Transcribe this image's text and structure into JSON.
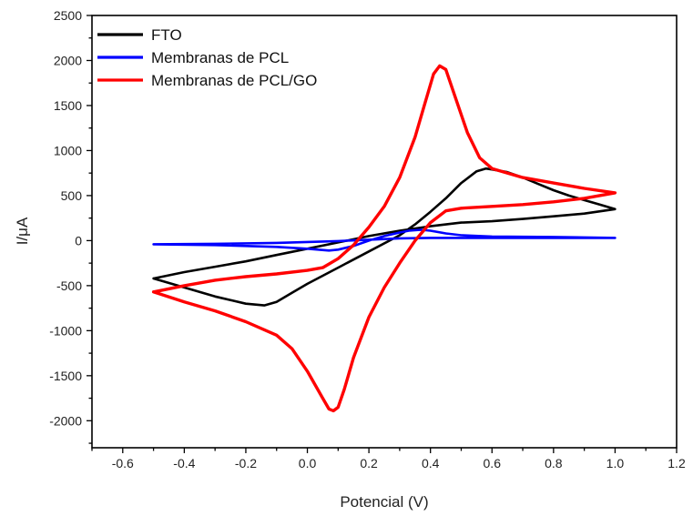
{
  "chart_data": {
    "type": "line",
    "title": "",
    "xlabel": "Potencial (V)",
    "ylabel": "I/μA",
    "xlim": [
      -0.7,
      1.2
    ],
    "ylim": [
      -2300,
      2500
    ],
    "xticks": [
      -0.6,
      -0.4,
      -0.2,
      0.0,
      0.2,
      0.4,
      0.6,
      0.8,
      1.0,
      1.2
    ],
    "xtick_labels": [
      "-0.6",
      "-0.4",
      "-0.2",
      "0.0",
      "0.2",
      "0.4",
      "0.6",
      "0.8",
      "1.0",
      "1.2"
    ],
    "yticks": [
      -2000,
      -1500,
      -1000,
      -500,
      0,
      500,
      1000,
      1500,
      2000,
      2500
    ],
    "ytick_labels": [
      "-2000",
      "-1500",
      "-1000",
      "-500",
      "0",
      "500",
      "1000",
      "1500",
      "2000",
      "2500"
    ],
    "grid": false,
    "legend": "top-left",
    "series": [
      {
        "name": "FTO",
        "color": "#000000",
        "points": [
          [
            -0.5,
            -420
          ],
          [
            -0.4,
            -350
          ],
          [
            -0.3,
            -290
          ],
          [
            -0.2,
            -230
          ],
          [
            -0.1,
            -160
          ],
          [
            0.0,
            -90
          ],
          [
            0.1,
            -20
          ],
          [
            0.2,
            50
          ],
          [
            0.3,
            110
          ],
          [
            0.4,
            160
          ],
          [
            0.45,
            180
          ],
          [
            0.5,
            200
          ],
          [
            0.6,
            215
          ],
          [
            0.7,
            240
          ],
          [
            0.8,
            270
          ],
          [
            0.9,
            300
          ],
          [
            1.0,
            350
          ],
          [
            0.95,
            400
          ],
          [
            0.9,
            450
          ],
          [
            0.85,
            500
          ],
          [
            0.8,
            560
          ],
          [
            0.75,
            630
          ],
          [
            0.7,
            700
          ],
          [
            0.65,
            760
          ],
          [
            0.6,
            790
          ],
          [
            0.58,
            800
          ],
          [
            0.55,
            770
          ],
          [
            0.5,
            640
          ],
          [
            0.45,
            470
          ],
          [
            0.4,
            320
          ],
          [
            0.35,
            180
          ],
          [
            0.3,
            60
          ],
          [
            0.2,
            -120
          ],
          [
            0.1,
            -300
          ],
          [
            0.0,
            -480
          ],
          [
            -0.05,
            -580
          ],
          [
            -0.1,
            -680
          ],
          [
            -0.14,
            -720
          ],
          [
            -0.2,
            -700
          ],
          [
            -0.3,
            -620
          ],
          [
            -0.4,
            -520
          ],
          [
            -0.5,
            -420
          ]
        ]
      },
      {
        "name": "Membranas de PCL",
        "color": "#0000ff",
        "points": [
          [
            -0.5,
            -40
          ],
          [
            -0.3,
            -35
          ],
          [
            -0.1,
            -25
          ],
          [
            0.1,
            -5
          ],
          [
            0.2,
            10
          ],
          [
            0.3,
            25
          ],
          [
            0.4,
            30
          ],
          [
            0.6,
            30
          ],
          [
            0.8,
            30
          ],
          [
            1.0,
            30
          ],
          [
            0.8,
            40
          ],
          [
            0.6,
            45
          ],
          [
            0.5,
            60
          ],
          [
            0.45,
            80
          ],
          [
            0.4,
            110
          ],
          [
            0.37,
            120
          ],
          [
            0.33,
            110
          ],
          [
            0.3,
            90
          ],
          [
            0.25,
            50
          ],
          [
            0.2,
            0
          ],
          [
            0.15,
            -60
          ],
          [
            0.1,
            -100
          ],
          [
            0.07,
            -110
          ],
          [
            0.0,
            -90
          ],
          [
            -0.1,
            -70
          ],
          [
            -0.3,
            -50
          ],
          [
            -0.5,
            -40
          ]
        ]
      },
      {
        "name": "Membranas de PCL/GO",
        "color": "#ff0000",
        "points": [
          [
            -0.5,
            -570
          ],
          [
            -0.4,
            -500
          ],
          [
            -0.3,
            -440
          ],
          [
            -0.2,
            -400
          ],
          [
            -0.1,
            -370
          ],
          [
            0.0,
            -330
          ],
          [
            0.05,
            -300
          ],
          [
            0.1,
            -200
          ],
          [
            0.15,
            -50
          ],
          [
            0.2,
            150
          ],
          [
            0.25,
            380
          ],
          [
            0.3,
            700
          ],
          [
            0.35,
            1150
          ],
          [
            0.38,
            1500
          ],
          [
            0.41,
            1850
          ],
          [
            0.43,
            1940
          ],
          [
            0.45,
            1900
          ],
          [
            0.48,
            1600
          ],
          [
            0.52,
            1200
          ],
          [
            0.56,
            920
          ],
          [
            0.6,
            800
          ],
          [
            0.7,
            700
          ],
          [
            0.8,
            640
          ],
          [
            0.9,
            580
          ],
          [
            1.0,
            530
          ],
          [
            0.95,
            500
          ],
          [
            0.9,
            470
          ],
          [
            0.8,
            430
          ],
          [
            0.7,
            400
          ],
          [
            0.6,
            380
          ],
          [
            0.5,
            360
          ],
          [
            0.45,
            330
          ],
          [
            0.4,
            200
          ],
          [
            0.35,
            0
          ],
          [
            0.3,
            -250
          ],
          [
            0.25,
            -520
          ],
          [
            0.2,
            -850
          ],
          [
            0.15,
            -1300
          ],
          [
            0.12,
            -1650
          ],
          [
            0.1,
            -1850
          ],
          [
            0.085,
            -1890
          ],
          [
            0.07,
            -1870
          ],
          [
            0.05,
            -1750
          ],
          [
            0.0,
            -1450
          ],
          [
            -0.05,
            -1200
          ],
          [
            -0.1,
            -1050
          ],
          [
            -0.2,
            -900
          ],
          [
            -0.3,
            -780
          ],
          [
            -0.4,
            -680
          ],
          [
            -0.5,
            -570
          ]
        ]
      }
    ]
  }
}
